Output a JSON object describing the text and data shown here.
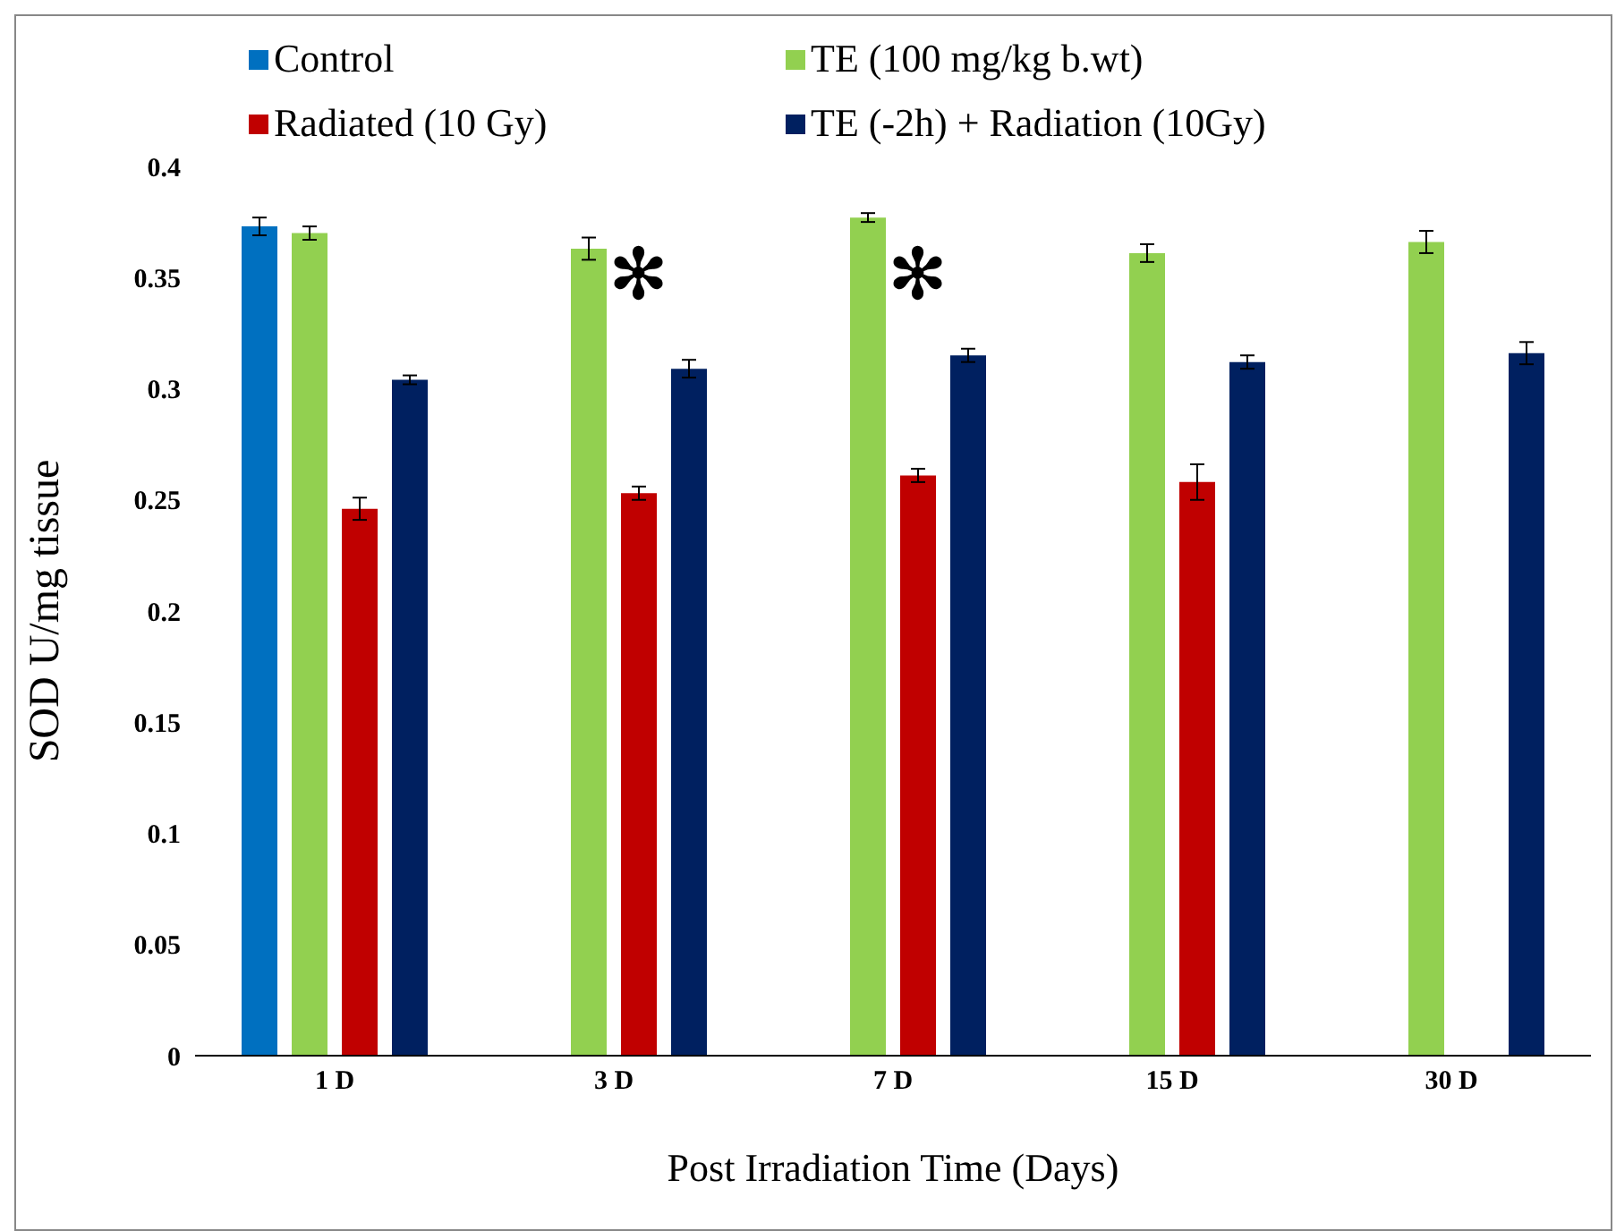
{
  "chart_data": {
    "type": "bar",
    "xlabel": "Post Irradiation Time (Days)",
    "ylabel": "SOD  U/mg  tissue",
    "categories": [
      "1 D",
      "3 D",
      "7 D",
      "15 D",
      "30 D"
    ],
    "series": [
      {
        "name": "Control",
        "color": "#0070c0",
        "values": [
          0.373,
          null,
          null,
          null,
          null
        ],
        "errors": [
          0.004,
          null,
          null,
          null,
          null
        ]
      },
      {
        "name": "TE (100 mg/kg b.wt)",
        "color": "#92d050",
        "values": [
          0.37,
          0.363,
          0.377,
          0.361,
          0.366
        ],
        "errors": [
          0.003,
          0.005,
          0.002,
          0.004,
          0.005
        ]
      },
      {
        "name": "Radiated (10 Gy)",
        "color": "#c00000",
        "values": [
          0.246,
          0.253,
          0.261,
          0.258,
          null
        ],
        "errors": [
          0.005,
          0.003,
          0.003,
          0.008,
          null
        ]
      },
      {
        "name": "TE (-2h) + Radiation (10Gy)",
        "color": "#002060",
        "values": [
          0.304,
          0.309,
          0.315,
          0.312,
          0.316
        ],
        "errors": [
          0.002,
          0.004,
          0.003,
          0.003,
          0.005
        ]
      }
    ],
    "ylim": [
      0,
      0.4
    ],
    "yticks": [
      0,
      0.05,
      0.1,
      0.15,
      0.2,
      0.25,
      0.3,
      0.35,
      0.4
    ],
    "grid": false,
    "legend": "top",
    "annotations": [
      {
        "text": "✻",
        "x": "3 D",
        "y": 0.35
      },
      {
        "text": "✻",
        "x": "7 D",
        "y": 0.35
      }
    ]
  }
}
